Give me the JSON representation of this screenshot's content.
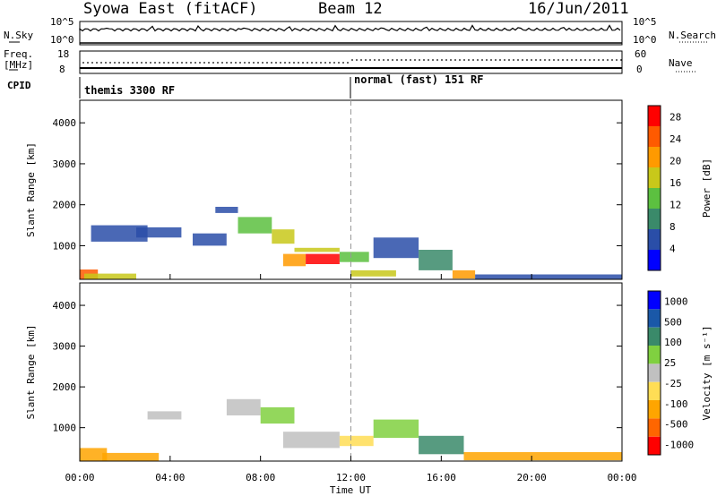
{
  "header": {
    "station": "Syowa East (fitACF)",
    "beam": "Beam 12",
    "date": "16/Jun/2011"
  },
  "strip": {
    "nsky_label": "N.Sky",
    "nsky_ticks": [
      "10^5",
      "10^0"
    ],
    "nsearch_label": "N.Search",
    "nsearch_ticks": [
      "10^5",
      "10^0"
    ],
    "freq_label": "Freq.",
    "freq_unit": "[MHz]",
    "freq_ticks": [
      "18",
      "8"
    ],
    "nave_label": "Nave",
    "nave_ticks": [
      "60",
      "0"
    ],
    "cpid_label": "CPID",
    "cpid_segments": [
      "themis 3300 RF",
      "normal (fast) 151 RF"
    ]
  },
  "colors": {
    "power": [
      "#0000ff",
      "#2a4ea8",
      "#3a8a6a",
      "#5cc040",
      "#c8c81a",
      "#ff9a00",
      "#ff5a00",
      "#ff0000"
    ],
    "velocity": [
      "#ff0000",
      "#ff6600",
      "#ffa500",
      "#ffdd55",
      "#c0c0c0",
      "#80d040",
      "#3a8a6a",
      "#1a58a8",
      "#0000ff"
    ]
  },
  "chart_data": [
    {
      "type": "heatmap",
      "title": "",
      "xlabel": "",
      "ylabel": "Slant Range [km]",
      "x_ticks": [
        "00:00",
        "04:00",
        "08:00",
        "12:00",
        "16:00",
        "20:00",
        "00:00"
      ],
      "x_range_hours": [
        0,
        24
      ],
      "y_ticks": [
        1000,
        2000,
        3000,
        4000
      ],
      "ylim": [
        180,
        4550
      ],
      "colorbar_label": "Power [dB]",
      "colorbar_ticks": [
        4,
        8,
        12,
        16,
        20,
        24,
        28
      ],
      "colorbar_range": [
        0,
        30
      ],
      "cells": [
        {
          "t0": 0.0,
          "t1": 0.8,
          "r0": 180,
          "r1": 420,
          "v": 26
        },
        {
          "t0": 0.2,
          "t1": 2.5,
          "r0": 180,
          "r1": 320,
          "v": 16
        },
        {
          "t0": 0.5,
          "t1": 3.0,
          "r0": 1100,
          "r1": 1500,
          "v": 6
        },
        {
          "t0": 2.5,
          "t1": 4.5,
          "r0": 1200,
          "r1": 1450,
          "v": 5
        },
        {
          "t0": 5.0,
          "t1": 6.5,
          "r0": 1000,
          "r1": 1300,
          "v": 6
        },
        {
          "t0": 6.0,
          "t1": 7.0,
          "r0": 1800,
          "r1": 1950,
          "v": 7
        },
        {
          "t0": 7.0,
          "t1": 8.5,
          "r0": 1300,
          "r1": 1700,
          "v": 12
        },
        {
          "t0": 8.5,
          "t1": 9.5,
          "r0": 1050,
          "r1": 1400,
          "v": 16
        },
        {
          "t0": 9.0,
          "t1": 10.0,
          "r0": 500,
          "r1": 800,
          "v": 22
        },
        {
          "t0": 10.0,
          "t1": 11.5,
          "r0": 550,
          "r1": 800,
          "v": 27
        },
        {
          "t0": 9.5,
          "t1": 11.5,
          "r0": 850,
          "r1": 950,
          "v": 18
        },
        {
          "t0": 11.5,
          "t1": 12.8,
          "r0": 600,
          "r1": 850,
          "v": 14
        },
        {
          "t0": 12.0,
          "t1": 14.0,
          "r0": 250,
          "r1": 400,
          "v": 18
        },
        {
          "t0": 13.0,
          "t1": 15.0,
          "r0": 700,
          "r1": 1200,
          "v": 6
        },
        {
          "t0": 15.0,
          "t1": 16.5,
          "r0": 400,
          "r1": 900,
          "v": 8
        },
        {
          "t0": 16.5,
          "t1": 17.5,
          "r0": 200,
          "r1": 400,
          "v": 22
        },
        {
          "t0": 17.5,
          "t1": 24.0,
          "r0": 180,
          "r1": 300,
          "v": 5
        }
      ]
    },
    {
      "type": "heatmap",
      "title": "",
      "xlabel": "Time UT",
      "ylabel": "Slant Range [km]",
      "x_ticks": [
        "00:00",
        "04:00",
        "08:00",
        "12:00",
        "16:00",
        "20:00",
        "00:00"
      ],
      "x_range_hours": [
        0,
        24
      ],
      "y_ticks": [
        1000,
        2000,
        3000,
        4000
      ],
      "ylim": [
        180,
        4550
      ],
      "colorbar_label": "Velocity [m s⁻¹]",
      "colorbar_ticks": [
        "1000",
        "500",
        "100",
        "25",
        "-25",
        "-100",
        "-500",
        "-1000"
      ],
      "cells": [
        {
          "t0": 0.0,
          "t1": 1.2,
          "r0": 180,
          "r1": 500,
          "v": -300
        },
        {
          "t0": 1.0,
          "t1": 3.5,
          "r0": 180,
          "r1": 380,
          "v": -150
        },
        {
          "t0": 3.0,
          "t1": 4.5,
          "r0": 1200,
          "r1": 1400,
          "v": 0
        },
        {
          "t0": 6.5,
          "t1": 8.0,
          "r0": 1300,
          "r1": 1700,
          "v": 0
        },
        {
          "t0": 8.0,
          "t1": 9.5,
          "r0": 1100,
          "r1": 1500,
          "v": 60
        },
        {
          "t0": 9.0,
          "t1": 11.5,
          "r0": 500,
          "r1": 900,
          "v": 0
        },
        {
          "t0": 11.5,
          "t1": 13.0,
          "r0": 550,
          "r1": 800,
          "v": -60
        },
        {
          "t0": 13.0,
          "t1": 15.0,
          "r0": 750,
          "r1": 1200,
          "v": 80
        },
        {
          "t0": 15.0,
          "t1": 17.0,
          "r0": 350,
          "r1": 800,
          "v": 400
        },
        {
          "t0": 17.0,
          "t1": 24.0,
          "r0": 200,
          "r1": 400,
          "v": -120
        }
      ]
    }
  ]
}
